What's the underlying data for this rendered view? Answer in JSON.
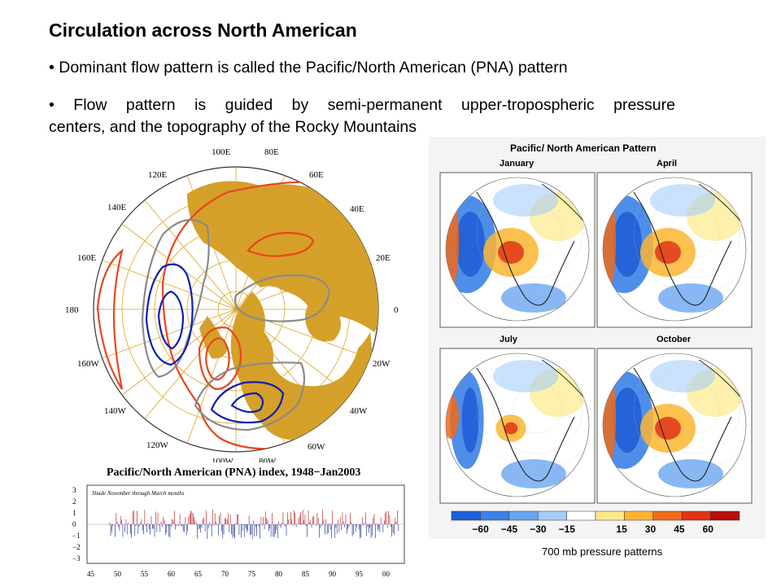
{
  "slide": {
    "title": "Circulation across North American",
    "bullet1": "• Dominant flow pattern is called the Pacific/North American (PNA) pattern",
    "bullet2_line1": "• Flow pattern is guided by semi-permanent upper-tropospheric pressure",
    "bullet2_line2": "centers, and the topography of the Rocky Mountains",
    "caption": "700 mb pressure patterns"
  },
  "polar_map": {
    "longitude_labels": [
      "100E",
      "80E",
      "120E",
      "60E",
      "140E",
      "40E",
      "160E",
      "20E",
      "180",
      "0",
      "160W",
      "20W",
      "140W",
      "40W",
      "120W",
      "60W",
      "100W",
      "80W"
    ],
    "colors": {
      "land": "#d4a02a",
      "positive": "#e8461e",
      "negative": "#0a1fb4",
      "neutral": "#8a8a8a",
      "grid": "#d9a520"
    }
  },
  "pna_index": {
    "title": "Pacific/North American (PNA) index, 1948−Jan2003",
    "note": "Shade November through March months",
    "y_ticks": [
      "3",
      "2",
      "1",
      "0",
      "−1",
      "−2",
      "−3"
    ],
    "x_ticks": [
      "45",
      "50",
      "55",
      "60",
      "65",
      "70",
      "75",
      "80",
      "85",
      "90",
      "95",
      "00"
    ],
    "colors": {
      "positive": "#c0282d",
      "negative": "#2d3c9e"
    }
  },
  "patterns": {
    "title": "Pacific/  North American Pattern",
    "panels": [
      "January",
      "April",
      "July",
      "October"
    ],
    "colorbar": {
      "labels": [
        "−60",
        "−45",
        "−30",
        "−15",
        "15",
        "30",
        "45",
        "60"
      ],
      "colors": [
        "#1f5fd6",
        "#3c82e6",
        "#6aa6f0",
        "#a6cef8",
        "#ffffff",
        "#fde98a",
        "#fcb530",
        "#f06a1a",
        "#e03414",
        "#b8100c"
      ]
    }
  }
}
